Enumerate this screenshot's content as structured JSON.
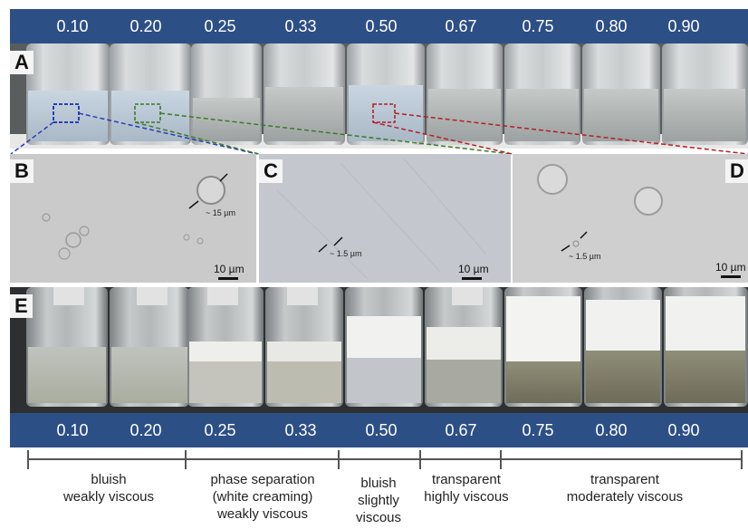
{
  "fractions": [
    "0.10",
    "0.20",
    "0.25",
    "0.33",
    "0.50",
    "0.67",
    "0.75",
    "0.80",
    "0.90"
  ],
  "panels": {
    "A": "A",
    "B": "B",
    "C": "C",
    "D": "D",
    "E": "E"
  },
  "micrographs": {
    "B": {
      "size_note": "~ 15 µm",
      "scale": "10 µm"
    },
    "C": {
      "size_note": "~ 1.5 µm",
      "scale": "10 µm"
    },
    "D": {
      "size_note": "~ 1.5 µm",
      "scale": "10 µm"
    }
  },
  "groups": [
    {
      "lines": [
        "bluish",
        "weakly viscous"
      ]
    },
    {
      "lines": [
        "phase separation",
        "(white creaming)",
        "weakly viscous"
      ]
    },
    {
      "lines": [
        "bluish",
        "slightly",
        "viscous"
      ]
    },
    {
      "lines": [
        "transparent",
        "highly viscous"
      ]
    },
    {
      "lines": [
        "transparent",
        "moderately viscous"
      ]
    }
  ],
  "colors": {
    "band": "#2c4f86",
    "box_blue": "#2a3fb0",
    "box_green": "#3f7a2a",
    "box_red": "#b3202a"
  }
}
